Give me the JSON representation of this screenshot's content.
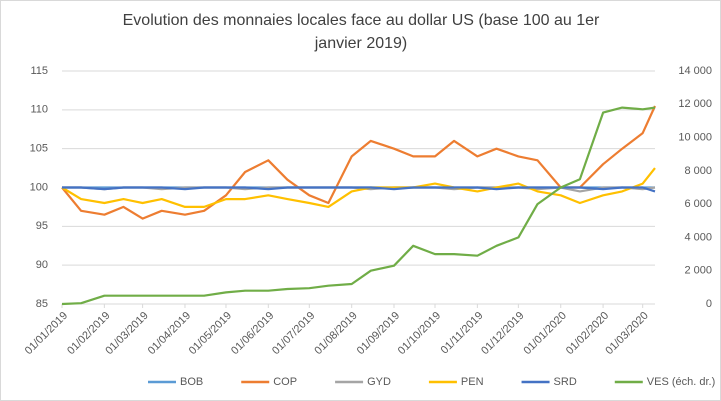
{
  "chart_data": {
    "type": "line",
    "title": [
      "Evolution des monnaies locales face au dollar US (base 100 au 1er",
      "janvier 2019)"
    ],
    "x": [
      "01/01/2019",
      "15/01/2019",
      "01/02/2019",
      "15/02/2019",
      "01/03/2019",
      "15/03/2019",
      "01/04/2019",
      "15/04/2019",
      "01/05/2019",
      "15/05/2019",
      "01/06/2019",
      "15/06/2019",
      "01/07/2019",
      "15/07/2019",
      "01/08/2019",
      "15/08/2019",
      "01/09/2019",
      "15/09/2019",
      "01/10/2019",
      "15/10/2019",
      "01/11/2019",
      "15/11/2019",
      "01/12/2019",
      "15/12/2019",
      "01/01/2020",
      "15/01/2020",
      "01/02/2020",
      "15/02/2020",
      "01/03/2020",
      "10/03/2020"
    ],
    "xlim": [
      "01/01/2019",
      "10/03/2020"
    ],
    "xticks": [
      "01/01/2019",
      "01/02/2019",
      "01/03/2019",
      "01/04/2019",
      "01/05/2019",
      "01/06/2019",
      "01/07/2019",
      "01/08/2019",
      "01/09/2019",
      "01/10/2019",
      "01/11/2019",
      "01/12/2019",
      "01/01/2020",
      "01/02/2020",
      "01/03/2020"
    ],
    "ylim": [
      85,
      115
    ],
    "yticks": [
      85,
      90,
      95,
      100,
      105,
      110,
      115
    ],
    "y2lim": [
      0,
      14000
    ],
    "y2ticks": [
      0,
      {
        "value": 2000,
        "label": "2 000"
      },
      {
        "value": 4000,
        "label": "4 000"
      },
      {
        "value": 6000,
        "label": "6 000"
      },
      {
        "value": 8000,
        "label": "8 000"
      },
      {
        "value": 10000,
        "label": "10 000"
      },
      {
        "value": 12000,
        "label": "12 000"
      },
      {
        "value": 14000,
        "label": "14 000"
      }
    ],
    "grid": true,
    "legend": "bottom",
    "series": [
      {
        "name": "BOB",
        "color": "#5b9bd5",
        "values": [
          100,
          100,
          100,
          100,
          100,
          100,
          100,
          100,
          100,
          100,
          100,
          100,
          100,
          100,
          100,
          100,
          100,
          100,
          100,
          100,
          100,
          100,
          100,
          100,
          100,
          100,
          100,
          100,
          100,
          100
        ]
      },
      {
        "name": "COP",
        "color": "#ed7d31",
        "values": [
          100,
          97,
          96.5,
          97.5,
          96,
          97,
          96.5,
          97,
          99,
          102,
          103.5,
          101,
          99,
          98,
          104,
          106,
          105,
          104,
          104,
          106,
          104,
          105,
          104,
          103.5,
          100,
          100,
          103,
          105,
          107,
          110.5
        ]
      },
      {
        "name": "GYD",
        "color": "#a5a5a5",
        "values": [
          100,
          100,
          99.8,
          100,
          100,
          99.8,
          100,
          100,
          100,
          99.8,
          100,
          100,
          100,
          100,
          100,
          99.8,
          100,
          100,
          100,
          99.8,
          100,
          100,
          100,
          99.8,
          100,
          99.5,
          100,
          100,
          99.8,
          100
        ]
      },
      {
        "name": "PEN",
        "color": "#ffc000",
        "values": [
          100,
          98.5,
          98,
          98.5,
          98,
          98.5,
          97.5,
          97.5,
          98.5,
          98.5,
          99,
          98.5,
          98,
          97.5,
          99.5,
          100,
          100,
          100,
          100.5,
          100,
          99.5,
          100,
          100.5,
          99.5,
          99,
          98,
          99,
          99.5,
          100.5,
          102.5
        ]
      },
      {
        "name": "SRD",
        "color": "#4472c4",
        "values": [
          100,
          100,
          99.8,
          100,
          100,
          100,
          99.8,
          100,
          100,
          100,
          99.8,
          100,
          100,
          100,
          100,
          100,
          99.8,
          100,
          100,
          100,
          100,
          99.8,
          100,
          100,
          100,
          100,
          99.8,
          100,
          100,
          99.5
        ]
      },
      {
        "name": "VES (éch. dr.)",
        "color": "#70ad47",
        "axis": "y2",
        "values": [
          0,
          50,
          500,
          500,
          500,
          500,
          500,
          500,
          700,
          800,
          800,
          900,
          950,
          1100,
          1200,
          2000,
          2300,
          3500,
          3000,
          3000,
          2900,
          3500,
          4000,
          6000,
          7000,
          7500,
          11500,
          11800,
          11700,
          11800
        ]
      }
    ]
  }
}
